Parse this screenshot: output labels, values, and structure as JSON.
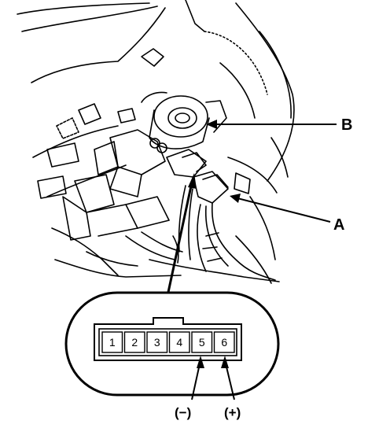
{
  "callouts": {
    "b": "B",
    "a": "A"
  },
  "connector": {
    "pins": [
      "1",
      "2",
      "3",
      "4",
      "5",
      "6"
    ]
  },
  "polarity": {
    "negative": "(−)",
    "positive": "(+)"
  }
}
